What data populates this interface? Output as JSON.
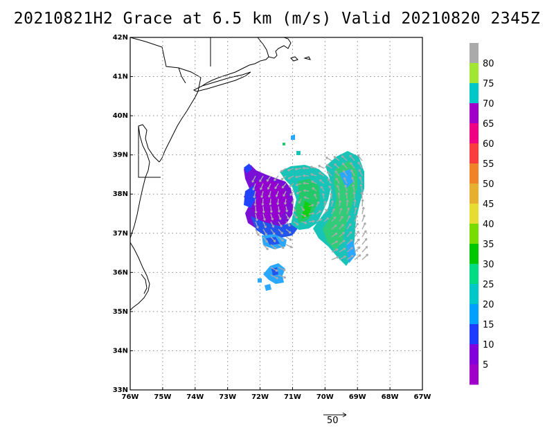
{
  "title": "20210821H2 Grace at 6.5 km (m/s) Valid 20210820 2345Z",
  "map": {
    "lon_range": [
      -76,
      -67
    ],
    "lat_range": [
      33,
      42
    ],
    "lon_ticks": [
      "76W",
      "75W",
      "74W",
      "73W",
      "72W",
      "71W",
      "70W",
      "69W",
      "68W",
      "67W"
    ],
    "lat_ticks": [
      "33N",
      "34N",
      "35N",
      "36N",
      "37N",
      "38N",
      "39N",
      "40N",
      "41N",
      "42N"
    ],
    "grid": "dotted",
    "reference_vector_label": "50"
  },
  "colorbar": {
    "labels": [
      "5",
      "10",
      "15",
      "20",
      "25",
      "30",
      "35",
      "40",
      "45",
      "50",
      "55",
      "60",
      "65",
      "70",
      "75",
      "80"
    ],
    "colors": [
      "#a000c8",
      "#8200dc",
      "#1e3cff",
      "#00a0ff",
      "#00c8c8",
      "#00dc82",
      "#00c800",
      "#78dc00",
      "#e6dc32",
      "#e6af2d",
      "#f08228",
      "#fa3c3c",
      "#f00082",
      "#a000c8",
      "#00c8c8",
      "#a0e632",
      "#aaaaaa"
    ]
  },
  "wind_field": {
    "units": "m/s",
    "colors": {
      "low": "#8a00d4",
      "blue": "#1e3cff",
      "light_blue": "#2aa8ff",
      "teal": "#18c4b8",
      "green": "#22c86a",
      "bright_green": "#10d010"
    },
    "arrow_color": "#a8a8a8"
  }
}
